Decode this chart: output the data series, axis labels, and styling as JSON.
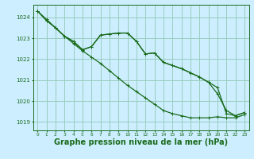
{
  "bg_color": "#cceeff",
  "plot_bg_color": "#cceeff",
  "grid_color": "#99ccbb",
  "line_color": "#1a6b1a",
  "xlabel": "Graphe pression niveau de la mer (hPa)",
  "xlabel_fontsize": 7,
  "xlim": [
    -0.5,
    23.5
  ],
  "ylim": [
    1018.6,
    1024.6
  ],
  "yticks": [
    1019,
    1020,
    1021,
    1022,
    1023,
    1024
  ],
  "xticks": [
    0,
    1,
    2,
    3,
    4,
    5,
    6,
    7,
    8,
    9,
    10,
    11,
    12,
    13,
    14,
    15,
    16,
    17,
    18,
    19,
    20,
    21,
    22,
    23
  ],
  "series1_x": [
    0,
    1,
    2,
    3,
    4,
    5,
    6,
    7,
    8,
    9,
    10,
    11,
    12,
    13,
    14,
    15,
    16,
    17,
    18,
    19,
    20,
    21,
    22,
    23
  ],
  "series1_y": [
    1024.3,
    1023.9,
    1023.5,
    1023.1,
    1022.75,
    1022.4,
    1022.1,
    1021.8,
    1021.45,
    1021.1,
    1020.75,
    1020.45,
    1020.15,
    1019.85,
    1019.55,
    1019.4,
    1019.3,
    1019.2,
    1019.2,
    1019.2,
    1019.25,
    1019.2,
    1019.2,
    1019.35
  ],
  "series2_x": [
    0,
    1,
    2,
    3,
    4,
    5,
    6,
    7,
    8,
    9,
    10,
    11,
    12,
    13,
    14,
    15,
    16,
    17,
    18,
    19,
    20,
    21,
    22,
    23
  ],
  "series2_y": [
    1024.3,
    1023.85,
    1023.5,
    1023.1,
    1022.85,
    1022.45,
    1022.6,
    1023.15,
    1023.2,
    1023.25,
    1023.25,
    1022.85,
    1022.25,
    1022.3,
    1021.85,
    1021.7,
    1021.55,
    1021.35,
    1021.15,
    1020.9,
    1020.65,
    1019.4,
    1019.3,
    1019.45
  ],
  "series3_x": [
    0,
    1,
    2,
    3,
    4,
    5,
    6,
    7,
    8,
    9,
    10,
    11,
    12,
    13,
    14,
    15,
    16,
    17,
    18,
    19,
    20,
    21,
    22,
    23
  ],
  "series3_y": [
    1024.3,
    1023.85,
    1023.5,
    1023.1,
    1022.85,
    1022.45,
    1022.6,
    1023.15,
    1023.2,
    1023.25,
    1023.25,
    1022.85,
    1022.25,
    1022.3,
    1021.85,
    1021.7,
    1021.55,
    1021.35,
    1021.15,
    1020.9,
    1020.35,
    1019.55,
    1019.3,
    1019.45
  ]
}
